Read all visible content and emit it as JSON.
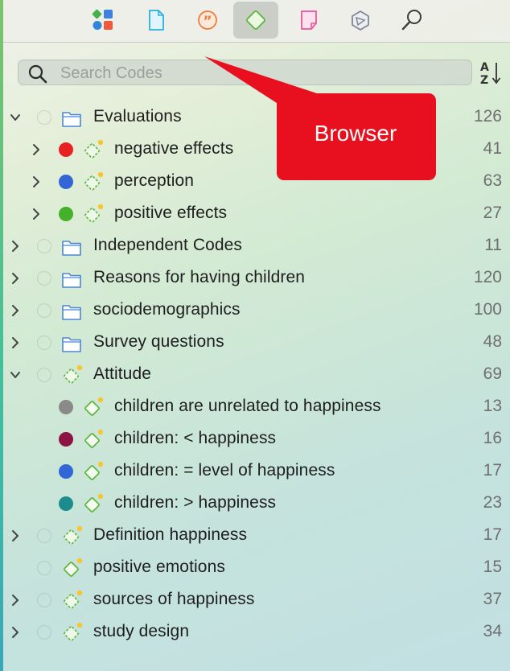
{
  "toolbar": {
    "buttons": [
      {
        "name": "apps-icon",
        "active": false
      },
      {
        "name": "document-icon",
        "active": false
      },
      {
        "name": "quote-icon",
        "active": false
      },
      {
        "name": "code-icon",
        "active": true
      },
      {
        "name": "memo-icon",
        "active": false
      },
      {
        "name": "network-icon",
        "active": false
      },
      {
        "name": "search-icon",
        "active": false
      }
    ]
  },
  "search": {
    "placeholder": "Search Codes",
    "value": ""
  },
  "callout": {
    "text": "Browser",
    "color": "#e8101e"
  },
  "colors": {
    "red": "#e82222",
    "blue": "#3266d6",
    "green": "#45b029",
    "gray": "#8a8a8a",
    "maroon": "#8d1344",
    "teal": "#1c8c8c",
    "folder": "#4a86d8",
    "code": "#5cb43c",
    "badge": "#f6c530"
  },
  "tree": [
    {
      "label": "Evaluations",
      "count": "126",
      "level": 0,
      "chevron": "down",
      "icon": "folder",
      "dot": "empty"
    },
    {
      "label": "negative effects",
      "count": "41",
      "level": 1,
      "chevron": "right",
      "icon": "code-group",
      "dot": "red"
    },
    {
      "label": "perception",
      "count": "63",
      "level": 1,
      "chevron": "right",
      "icon": "code-group",
      "dot": "blue"
    },
    {
      "label": "positive effects",
      "count": "27",
      "level": 1,
      "chevron": "right",
      "icon": "code-group",
      "dot": "green"
    },
    {
      "label": "Independent Codes",
      "count": "11",
      "level": 0,
      "chevron": "right",
      "icon": "folder",
      "dot": "empty"
    },
    {
      "label": "Reasons for having children",
      "count": "120",
      "level": 0,
      "chevron": "right",
      "icon": "folder",
      "dot": "empty"
    },
    {
      "label": "sociodemographics",
      "count": "100",
      "level": 0,
      "chevron": "right",
      "icon": "folder",
      "dot": "empty"
    },
    {
      "label": "Survey questions",
      "count": "48",
      "level": 0,
      "chevron": "right",
      "icon": "folder",
      "dot": "empty"
    },
    {
      "label": "Attitude",
      "count": "69",
      "level": 0,
      "chevron": "down",
      "icon": "code-group",
      "dot": "empty"
    },
    {
      "label": "children are unrelated to happiness",
      "count": "13",
      "level": 1,
      "chevron": "none",
      "icon": "code",
      "dot": "gray"
    },
    {
      "label": "children: < happiness",
      "count": "16",
      "level": 1,
      "chevron": "none",
      "icon": "code",
      "dot": "maroon"
    },
    {
      "label": "children: = level of happiness",
      "count": "17",
      "level": 1,
      "chevron": "none",
      "icon": "code",
      "dot": "blue"
    },
    {
      "label": "children: > happiness",
      "count": "23",
      "level": 1,
      "chevron": "none",
      "icon": "code",
      "dot": "teal"
    },
    {
      "label": "Definition happiness",
      "count": "17",
      "level": 0,
      "chevron": "right",
      "icon": "code-group",
      "dot": "empty"
    },
    {
      "label": "positive emotions",
      "count": "15",
      "level": 0,
      "chevron": "none",
      "icon": "code",
      "dot": "empty"
    },
    {
      "label": "sources of happiness",
      "count": "37",
      "level": 0,
      "chevron": "right",
      "icon": "code-group",
      "dot": "empty"
    },
    {
      "label": "study design",
      "count": "34",
      "level": 0,
      "chevron": "right",
      "icon": "code-group",
      "dot": "empty"
    }
  ]
}
